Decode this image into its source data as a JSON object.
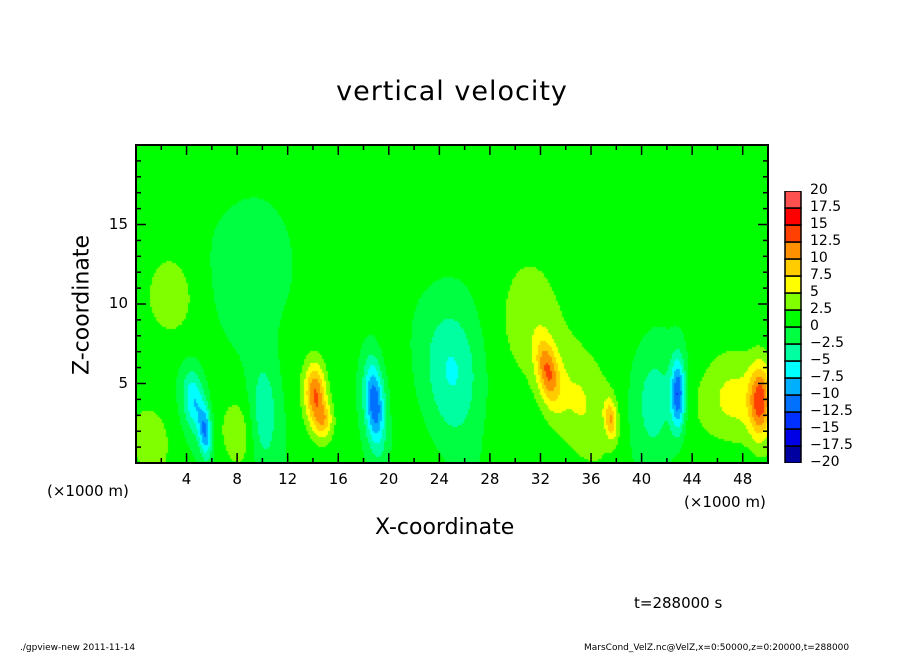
{
  "chart_data": {
    "type": "heatmap",
    "title": "vertical velocity",
    "xlabel": "X-coordinate",
    "ylabel": "Z-coordinate",
    "x_unit_label": "(×1000 m)",
    "xlim": [
      0,
      50
    ],
    "ylim": [
      0,
      20
    ],
    "xticks": [
      4,
      8,
      12,
      16,
      20,
      24,
      28,
      32,
      36,
      40,
      44,
      48
    ],
    "yticks": [
      5,
      10,
      15
    ],
    "colorbar": {
      "levels": [
        -20,
        -17.5,
        -15,
        -12.5,
        -10,
        -7.5,
        -5,
        -2.5,
        0,
        2.5,
        5,
        7.5,
        10,
        12.5,
        15,
        17.5,
        20
      ],
      "labels": [
        "−20",
        "−17.5",
        "−15",
        "−12.5",
        "−10",
        "−7.5",
        "−5",
        "−2.5",
        "0",
        "2.5",
        "5",
        "7.5",
        "10",
        "12.5",
        "15",
        "17.5",
        "20"
      ],
      "colors": [
        "#6a0ab0",
        "#0000a0",
        "#0000e6",
        "#0030ff",
        "#0070ff",
        "#00b0ff",
        "#00ffff",
        "#00ffa0",
        "#00ff40",
        "#00ff00",
        "#80ff00",
        "#ffff00",
        "#ffcc00",
        "#ff9000",
        "#ff4000",
        "#ff0000",
        "#ff5050",
        "#ff9090"
      ]
    },
    "features": [
      {
        "x": 4.5,
        "z": 4.0,
        "w": -8,
        "sx": 0.6,
        "sz": 1.4,
        "tilt": 0.3
      },
      {
        "x": 5.4,
        "z": 2.0,
        "w": -10,
        "sx": 0.35,
        "sz": 1.1,
        "tilt": 0.2
      },
      {
        "x": 14.1,
        "z": 4.4,
        "w": 11.5,
        "sx": 0.6,
        "sz": 1.4,
        "tilt": 0.1
      },
      {
        "x": 14.8,
        "z": 2.7,
        "w": 6,
        "sx": 0.5,
        "sz": 0.8,
        "tilt": 0
      },
      {
        "x": 18.8,
        "z": 3.8,
        "w": -13,
        "sx": 0.55,
        "sz": 1.9,
        "tilt": 0.25
      },
      {
        "x": 25,
        "z": 6,
        "w": -6,
        "sx": 1.6,
        "sz": 3,
        "tilt": 0.2
      },
      {
        "x": 10,
        "z": 3,
        "w": -5,
        "sx": 0.8,
        "sz": 2.5,
        "tilt": 0
      },
      {
        "x": 8,
        "z": 2,
        "w": 3,
        "sx": 1,
        "sz": 1.5,
        "tilt": 0
      },
      {
        "x": 32.5,
        "z": 5.8,
        "w": 9.5,
        "sx": 0.6,
        "sz": 1.4,
        "tilt": 0.6
      },
      {
        "x": 37.5,
        "z": 2.8,
        "w": 8,
        "sx": 0.35,
        "sz": 0.9,
        "tilt": 0.3
      },
      {
        "x": 35,
        "z": 4,
        "w": 4,
        "sx": 2,
        "sz": 2.5,
        "tilt": 0.4
      },
      {
        "x": 42.8,
        "z": 4.4,
        "w": -12.5,
        "sx": 0.4,
        "sz": 1.6,
        "tilt": 0
      },
      {
        "x": 41,
        "z": 4,
        "w": -5,
        "sx": 1.2,
        "sz": 2.5,
        "tilt": 0
      },
      {
        "x": 49.3,
        "z": 4,
        "w": 11,
        "sx": 0.6,
        "sz": 1.6,
        "tilt": 0
      },
      {
        "x": 47,
        "z": 4,
        "w": 5,
        "sx": 2,
        "sz": 2,
        "tilt": 0
      },
      {
        "x": 2.5,
        "z": 10.5,
        "w": 3,
        "sx": 1.5,
        "sz": 2,
        "tilt": 0
      },
      {
        "x": 9,
        "z": 12,
        "w": -3,
        "sx": 2,
        "sz": 3,
        "tilt": 0
      },
      {
        "x": 31,
        "z": 9,
        "w": 3,
        "sx": 2,
        "sz": 3,
        "tilt": 0
      },
      {
        "x": 1,
        "z": 1.5,
        "w": 3,
        "sx": 1.2,
        "sz": 1.5,
        "tilt": 0
      }
    ]
  },
  "time_label": "t=288000 s",
  "footer_left": "./gpview-new  2011-11-14",
  "footer_right": "MarsCond_VelZ.nc@VelZ,x=0:50000,z=0:20000,t=288000"
}
